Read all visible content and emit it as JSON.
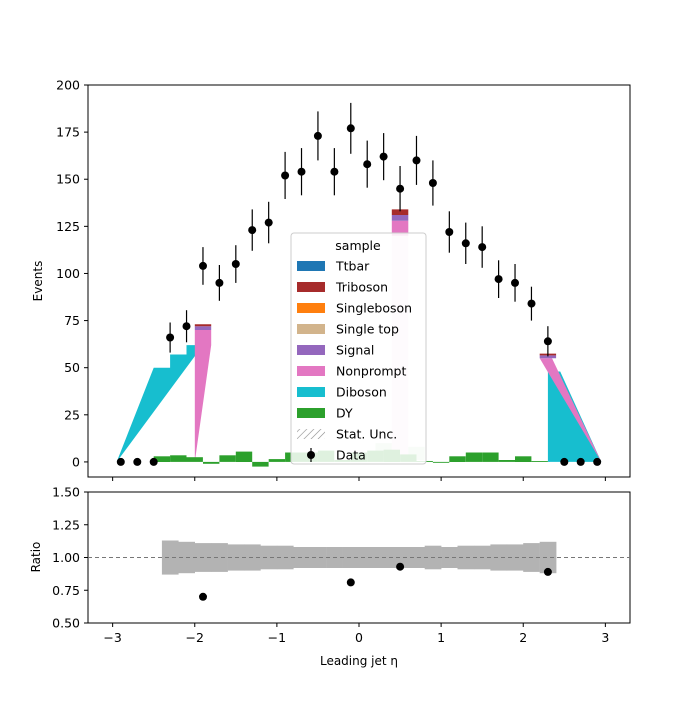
{
  "chart_data": [
    {
      "type": "bar",
      "ylabel": "Events",
      "xlim": [
        -3.3,
        3.3
      ],
      "ylim": [
        -8,
        200
      ],
      "yticks": [
        0,
        25,
        50,
        75,
        100,
        125,
        150,
        175,
        200
      ],
      "bin_width": 0.2,
      "colors": {
        "Ttbar": "#1f77b4",
        "Triboson": "#a62b2b",
        "Singleboson": "#ff7f0e",
        "Single top": "#d2b48c",
        "Signal": "#9467bd",
        "Nonprompt": "#e377c2",
        "Diboson": "#17becf",
        "DY": "#2ca02c",
        "Data": "#000000"
      },
      "legend": {
        "title": "sample",
        "position": "center",
        "entries": [
          "Ttbar",
          "Triboson",
          "Singleboson",
          "Single top",
          "Signal",
          "Nonprompt",
          "Diboson",
          "DY",
          "Stat. Unc.",
          "Data"
        ]
      },
      "dy_bins": {
        "edges_start": -2.5,
        "values": [
          3,
          3.5,
          2.5,
          -1,
          3.5,
          5.5,
          -2.5,
          1.5,
          5,
          5,
          6,
          1,
          5,
          6,
          6.5,
          4,
          0.5,
          -0.5,
          3,
          5,
          5,
          1,
          3,
          0.5
        ]
      },
      "stack_fills": [
        {
          "series": "Diboson",
          "points": [
            [
              -2.95,
              0
            ],
            [
              -2.5,
              50
            ],
            [
              -2.3,
              50
            ],
            [
              -2.3,
              57
            ],
            [
              -2.1,
              57
            ],
            [
              -2.1,
              62
            ],
            [
              -1.9,
              62
            ],
            [
              -2.95,
              0
            ]
          ]
        },
        {
          "series": "Diboson",
          "points": [
            [
              2.3,
              48
            ],
            [
              2.45,
              48
            ],
            [
              2.95,
              0
            ],
            [
              2.3,
              0
            ]
          ]
        },
        {
          "series": "Nonprompt",
          "points": [
            [
              -2.0,
              0
            ],
            [
              -2.0,
              70
            ],
            [
              -1.8,
              70
            ],
            [
              -1.8,
              62
            ]
          ]
        },
        {
          "series": "Nonprompt",
          "points": [
            [
              2.2,
              55
            ],
            [
              2.35,
              55
            ],
            [
              2.95,
              0
            ]
          ]
        },
        {
          "series": "Nonprompt",
          "points": [
            [
              0.4,
              2
            ],
            [
              0.4,
              120
            ],
            [
              0.6,
              120
            ],
            [
              0.6,
              2
            ]
          ],
          "light": true
        },
        {
          "series": "Nonprompt",
          "points": [
            [
              0.4,
              120
            ],
            [
              0.4,
              128
            ],
            [
              0.6,
              128
            ],
            [
              0.6,
              120
            ]
          ]
        },
        {
          "series": "Signal",
          "points": [
            [
              -2.0,
              70
            ],
            [
              -2.0,
              72
            ],
            [
              -1.8,
              72
            ],
            [
              -1.8,
              70
            ]
          ]
        },
        {
          "series": "Signal",
          "points": [
            [
              0.4,
              128
            ],
            [
              0.4,
              131
            ],
            [
              0.6,
              131
            ],
            [
              0.6,
              128
            ]
          ]
        },
        {
          "series": "Signal",
          "points": [
            [
              2.2,
              55
            ],
            [
              2.4,
              55
            ],
            [
              2.4,
              56.5
            ],
            [
              2.2,
              56.5
            ]
          ]
        },
        {
          "series": "Triboson",
          "points": [
            [
              -2.0,
              72
            ],
            [
              -2.0,
              73
            ],
            [
              -1.8,
              73
            ],
            [
              -1.8,
              72
            ]
          ]
        },
        {
          "series": "Triboson",
          "points": [
            [
              0.4,
              131
            ],
            [
              0.4,
              134
            ],
            [
              0.6,
              134
            ],
            [
              0.6,
              131
            ]
          ]
        },
        {
          "series": "Triboson",
          "points": [
            [
              2.2,
              56.5
            ],
            [
              2.4,
              56.5
            ],
            [
              2.4,
              57.5
            ],
            [
              2.2,
              57.5
            ]
          ]
        }
      ],
      "light_fills": [
        {
          "series": "DY",
          "points": [
            [
              0.2,
              1
            ],
            [
              0.2,
              10
            ],
            [
              0.4,
              10
            ],
            [
              0.4,
              1
            ]
          ]
        },
        {
          "series": "DY",
          "points": [
            [
              0.6,
              1
            ],
            [
              0.6,
              8
            ],
            [
              0.8,
              8
            ],
            [
              0.8,
              1
            ]
          ]
        }
      ],
      "data_points": {
        "x": [
          -2.9,
          -2.7,
          -2.5,
          -2.3,
          -2.1,
          -1.9,
          -1.7,
          -1.5,
          -1.3,
          -1.1,
          -0.9,
          -0.7,
          -0.5,
          -0.3,
          -0.1,
          0.1,
          0.3,
          0.5,
          0.7,
          0.9,
          1.1,
          1.3,
          1.5,
          1.7,
          1.9,
          2.1,
          2.3,
          2.5,
          2.7,
          2.9
        ],
        "y": [
          0,
          0,
          0,
          66,
          72,
          104,
          95,
          105,
          123,
          127,
          152,
          154,
          173,
          154,
          177,
          158,
          162,
          145,
          160,
          148,
          122,
          116,
          114,
          97,
          95,
          84,
          64,
          0,
          0,
          0
        ],
        "err": [
          0,
          0,
          0,
          8,
          8.5,
          10,
          9.5,
          10,
          11,
          11,
          12.5,
          12.5,
          13,
          12.5,
          13.5,
          12.5,
          12.5,
          12,
          13,
          12,
          11,
          11,
          11,
          10,
          10,
          9,
          8,
          0,
          0,
          0
        ]
      }
    },
    {
      "type": "scatter",
      "xlabel": "Leading jet  η",
      "ylabel": "Ratio",
      "xlim": [
        -3.3,
        3.3
      ],
      "ylim": [
        0.5,
        1.5
      ],
      "xticks": [
        -3,
        -2,
        -1,
        0,
        1,
        2,
        3
      ],
      "yticks": [
        0.5,
        0.75,
        1.0,
        1.25,
        1.5
      ],
      "reference_line": 1.0,
      "uncertainty_band": {
        "edges_start": -2.4,
        "bin_width": 0.2,
        "half_width": [
          0.13,
          0.12,
          0.11,
          0.11,
          0.1,
          0.1,
          0.09,
          0.09,
          0.08,
          0.08,
          0.08,
          0.08,
          0.08,
          0.08,
          0.08,
          0.08,
          0.09,
          0.08,
          0.09,
          0.09,
          0.1,
          0.1,
          0.11,
          0.12
        ]
      },
      "points": {
        "x": [
          -1.9,
          -0.1,
          0.5,
          2.3
        ],
        "y": [
          0.7,
          0.81,
          0.93,
          0.89
        ]
      }
    }
  ]
}
